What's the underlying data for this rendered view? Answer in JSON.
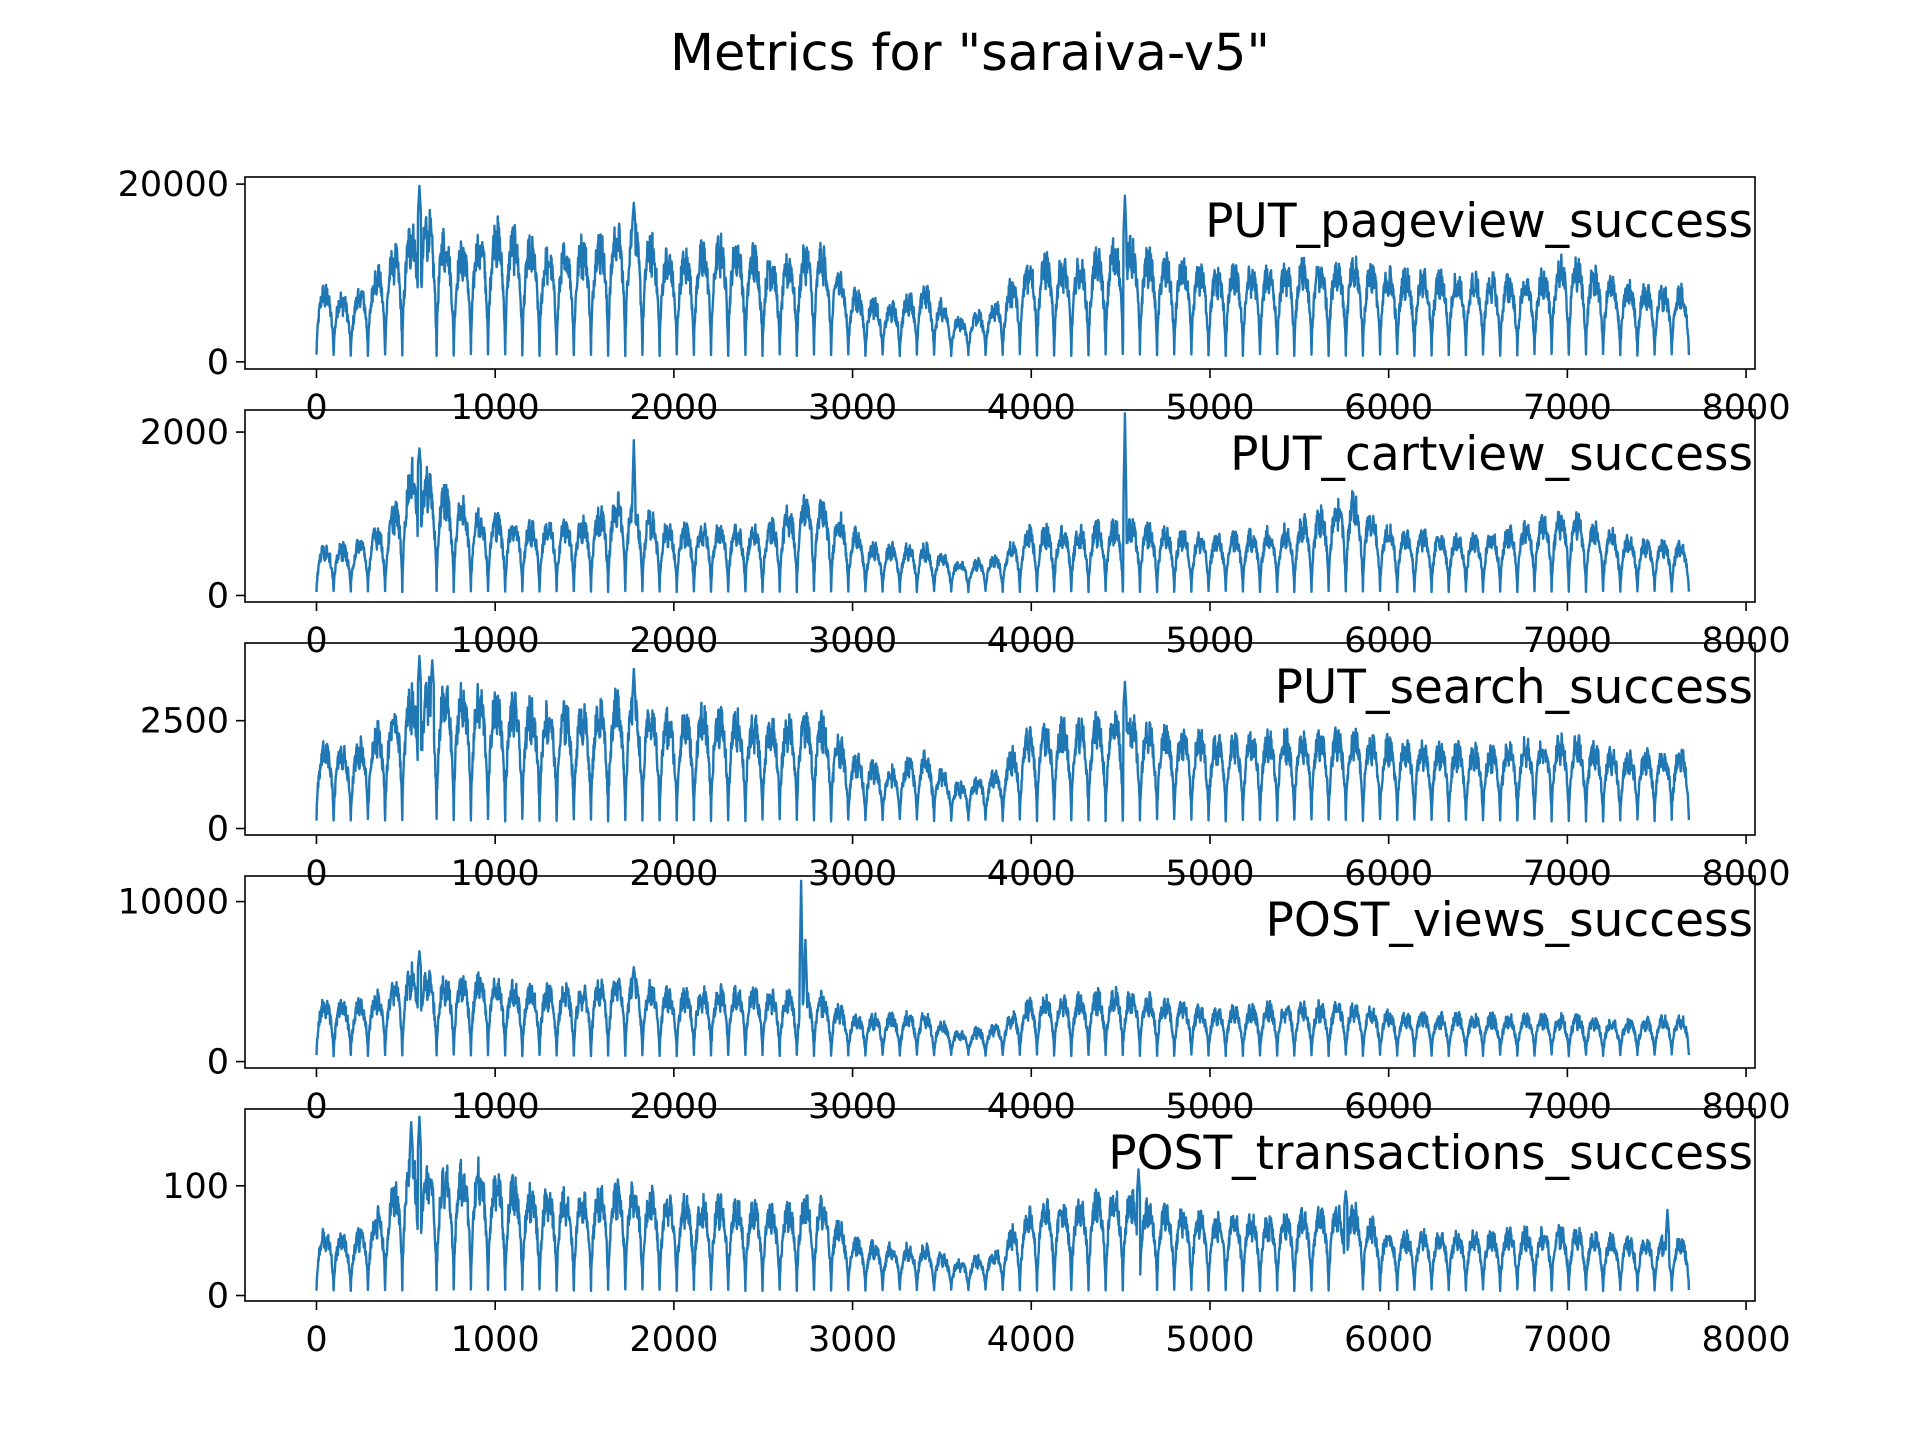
{
  "chart_data": {
    "title": "Metrics for \"saraiva-v5\"",
    "type": "line",
    "line_color": "#1f77b4",
    "x_ticks": [
      0,
      1000,
      2000,
      3000,
      4000,
      5000,
      6000,
      7000,
      8000
    ],
    "xlim": [
      -400,
      8050
    ],
    "grid": false,
    "series": [
      {
        "name": "PUT_pageview_success",
        "y_ticks": [
          0,
          20000
        ],
        "ylim": [
          -800,
          20800
        ],
        "x_range": [
          0,
          7680
        ],
        "period": 96,
        "baseline": 800,
        "peak_envelope": [
          [
            0,
            8500
          ],
          [
            200,
            7000
          ],
          [
            400,
            11500
          ],
          [
            600,
            16500
          ],
          [
            800,
            12500
          ],
          [
            1000,
            15000
          ],
          [
            1300,
            12000
          ],
          [
            1600,
            14000
          ],
          [
            1750,
            15500
          ],
          [
            2000,
            11500
          ],
          [
            2300,
            13500
          ],
          [
            2600,
            11000
          ],
          [
            2800,
            13000
          ],
          [
            3000,
            8000
          ],
          [
            3200,
            6000
          ],
          [
            3400,
            8500
          ],
          [
            3600,
            4500
          ],
          [
            3800,
            6500
          ],
          [
            4000,
            11500
          ],
          [
            4300,
            11000
          ],
          [
            4500,
            13500
          ],
          [
            4700,
            11500
          ],
          [
            5000,
            10000
          ],
          [
            5400,
            10500
          ],
          [
            5800,
            11000
          ],
          [
            6000,
            10000
          ],
          [
            6400,
            9500
          ],
          [
            6800,
            9000
          ],
          [
            7000,
            11500
          ],
          [
            7300,
            8500
          ],
          [
            7680,
            8000
          ]
        ],
        "spikes": [
          [
            576,
            19800
          ],
          [
            1776,
            17900
          ],
          [
            4524,
            18700
          ]
        ]
      },
      {
        "name": "PUT_cartview_success",
        "y_ticks": [
          0,
          2000
        ],
        "ylim": [
          -80,
          2270
        ],
        "x_range": [
          0,
          7680
        ],
        "period": 96,
        "baseline": 50,
        "peak_envelope": [
          [
            0,
            600
          ],
          [
            200,
            600
          ],
          [
            400,
            900
          ],
          [
            550,
            1600
          ],
          [
            700,
            1300
          ],
          [
            900,
            1000
          ],
          [
            1200,
            850
          ],
          [
            1500,
            900
          ],
          [
            1700,
            1200
          ],
          [
            2000,
            800
          ],
          [
            2200,
            850
          ],
          [
            2500,
            800
          ],
          [
            2750,
            1200
          ],
          [
            2900,
            1000
          ],
          [
            3100,
            600
          ],
          [
            3400,
            600
          ],
          [
            3600,
            400
          ],
          [
            3800,
            450
          ],
          [
            4000,
            800
          ],
          [
            4300,
            800
          ],
          [
            4500,
            900
          ],
          [
            4700,
            800
          ],
          [
            5000,
            700
          ],
          [
            5400,
            800
          ],
          [
            5800,
            1200
          ],
          [
            6000,
            800
          ],
          [
            6500,
            700
          ],
          [
            7000,
            1000
          ],
          [
            7300,
            700
          ],
          [
            7680,
            600
          ]
        ],
        "spikes": [
          [
            576,
            1800
          ],
          [
            1776,
            1900
          ],
          [
            4524,
            2230
          ]
        ]
      },
      {
        "name": "PUT_search_success",
        "y_ticks": [
          0,
          2500
        ],
        "ylim": [
          -150,
          4300
        ],
        "x_range": [
          0,
          7680
        ],
        "period": 96,
        "baseline": 200,
        "peak_envelope": [
          [
            0,
            1900
          ],
          [
            200,
            1800
          ],
          [
            400,
            2500
          ],
          [
            550,
            3200
          ],
          [
            700,
            3200
          ],
          [
            900,
            3100
          ],
          [
            1200,
            2800
          ],
          [
            1500,
            2700
          ],
          [
            1700,
            3000
          ],
          [
            2000,
            2500
          ],
          [
            2200,
            2700
          ],
          [
            2500,
            2400
          ],
          [
            2800,
            2600
          ],
          [
            3000,
            1700
          ],
          [
            3200,
            1300
          ],
          [
            3400,
            1700
          ],
          [
            3600,
            1000
          ],
          [
            3800,
            1300
          ],
          [
            4000,
            2300
          ],
          [
            4300,
            2400
          ],
          [
            4500,
            2700
          ],
          [
            4700,
            2300
          ],
          [
            5000,
            2100
          ],
          [
            5400,
            2100
          ],
          [
            5800,
            2200
          ],
          [
            6000,
            2000
          ],
          [
            6500,
            1800
          ],
          [
            7000,
            2100
          ],
          [
            7300,
            1700
          ],
          [
            7680,
            1800
          ]
        ],
        "spikes": [
          [
            576,
            4000
          ],
          [
            648,
            3900
          ],
          [
            1776,
            3700
          ],
          [
            4524,
            3400
          ]
        ]
      },
      {
        "name": "POST_views_success",
        "y_ticks": [
          0,
          10000
        ],
        "ylim": [
          -400,
          11600
        ],
        "x_range": [
          0,
          7680
        ],
        "period": 96,
        "baseline": 400,
        "peak_envelope": [
          [
            0,
            3800
          ],
          [
            200,
            3500
          ],
          [
            400,
            4500
          ],
          [
            550,
            5800
          ],
          [
            700,
            5000
          ],
          [
            900,
            5200
          ],
          [
            1200,
            4500
          ],
          [
            1500,
            4500
          ],
          [
            1700,
            5200
          ],
          [
            2000,
            4200
          ],
          [
            2300,
            4500
          ],
          [
            2600,
            4200
          ],
          [
            2800,
            4200
          ],
          [
            3000,
            2800
          ],
          [
            3200,
            2800
          ],
          [
            3400,
            3000
          ],
          [
            3600,
            1800
          ],
          [
            3800,
            2200
          ],
          [
            4000,
            3800
          ],
          [
            4300,
            4000
          ],
          [
            4500,
            4400
          ],
          [
            4700,
            3800
          ],
          [
            5000,
            3200
          ],
          [
            5400,
            3500
          ],
          [
            5800,
            3500
          ],
          [
            6000,
            3000
          ],
          [
            6500,
            2800
          ],
          [
            7000,
            2800
          ],
          [
            7300,
            2500
          ],
          [
            7680,
            2800
          ]
        ],
        "spikes": [
          [
            576,
            6900
          ],
          [
            1776,
            5900
          ],
          [
            2712,
            11300
          ],
          [
            2736,
            7600
          ]
        ]
      },
      {
        "name": "POST_transactions_success",
        "y_ticks": [
          0,
          100
        ],
        "ylim": [
          -5,
          170
        ],
        "x_range": [
          0,
          7680
        ],
        "period": 96,
        "baseline": 5,
        "peak_envelope": [
          [
            0,
            60
          ],
          [
            200,
            50
          ],
          [
            400,
            85
          ],
          [
            550,
            130
          ],
          [
            700,
            110
          ],
          [
            900,
            115
          ],
          [
            1200,
            95
          ],
          [
            1500,
            90
          ],
          [
            1700,
            100
          ],
          [
            2000,
            85
          ],
          [
            2300,
            85
          ],
          [
            2600,
            75
          ],
          [
            2800,
            90
          ],
          [
            3000,
            50
          ],
          [
            3200,
            45
          ],
          [
            3400,
            45
          ],
          [
            3600,
            30
          ],
          [
            3800,
            40
          ],
          [
            4000,
            80
          ],
          [
            4300,
            85
          ],
          [
            4500,
            95
          ],
          [
            4700,
            80
          ],
          [
            5000,
            70
          ],
          [
            5400,
            70
          ],
          [
            5800,
            80
          ],
          [
            6000,
            55
          ],
          [
            6500,
            55
          ],
          [
            7000,
            60
          ],
          [
            7300,
            50
          ],
          [
            7680,
            50
          ]
        ],
        "spikes": [
          [
            530,
            158
          ],
          [
            576,
            163
          ],
          [
            4600,
            115
          ],
          [
            5760,
            95
          ],
          [
            7560,
            78
          ]
        ]
      }
    ]
  }
}
